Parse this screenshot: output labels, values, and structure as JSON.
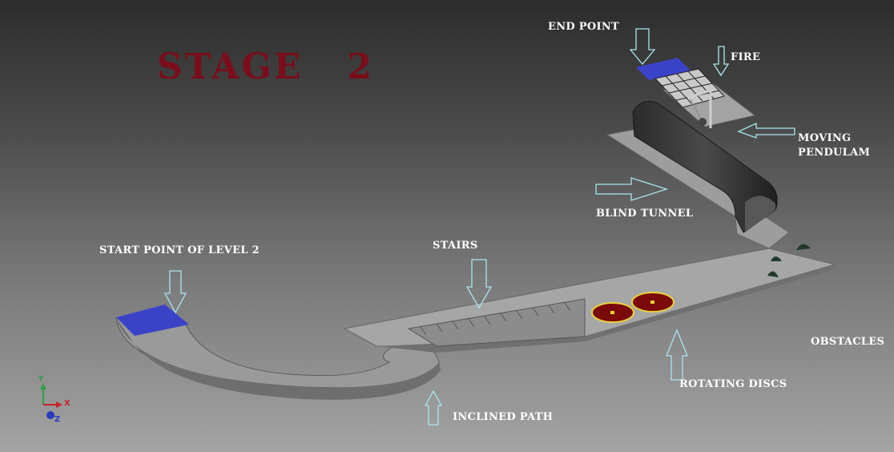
{
  "title": "STAGE   2",
  "labels": {
    "end_point": "END POINT",
    "fire": "FIRE",
    "moving_pendulam": "MOVING\nPENDULAM",
    "blind_tunnel": "BLIND TUNNEL",
    "start_point": "START POINT OF LEVEL 2",
    "stairs": "STAIRS",
    "obstacles": "OBSTACLES",
    "rotating_discs": "ROTATING DISCS",
    "inclined_path": "INCLINED PATH"
  },
  "axes_triad": {
    "y": "Y",
    "x": "X",
    "z": "Z"
  },
  "colors": {
    "title": "#7a0d1b",
    "marker": "#3a43c8",
    "disc": "#7a0a0a",
    "disc_rim": "#e8d23a",
    "arrow_outline": "#a8e6ee"
  }
}
